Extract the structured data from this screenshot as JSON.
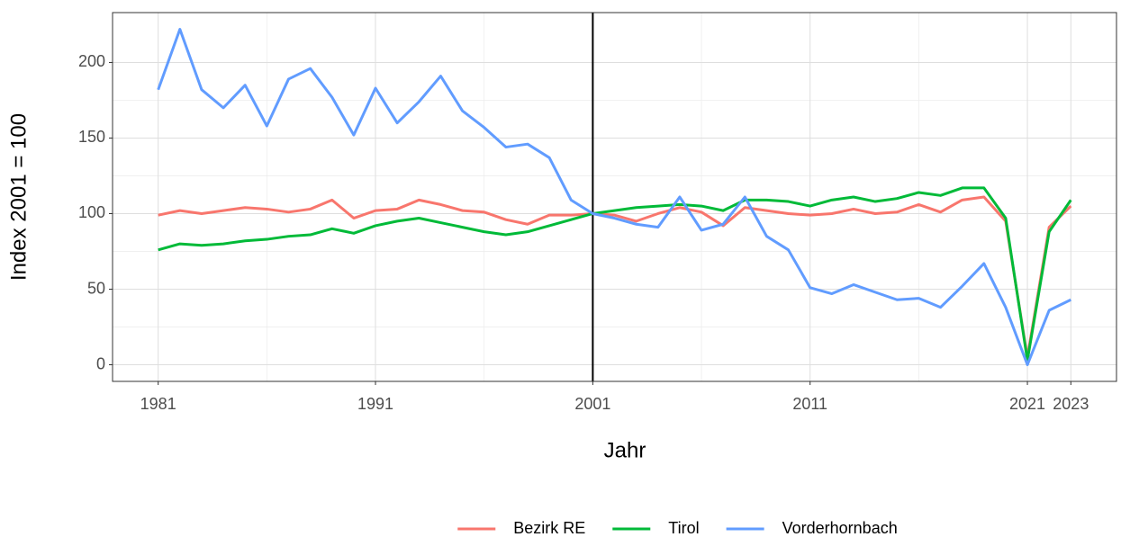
{
  "chart_data": {
    "type": "line",
    "x_label": "Jahr",
    "y_label": "Index 2001 = 100",
    "x": [
      1981,
      1982,
      1983,
      1984,
      1985,
      1986,
      1987,
      1988,
      1989,
      1990,
      1991,
      1992,
      1993,
      1994,
      1995,
      1996,
      1997,
      1998,
      1999,
      2000,
      2001,
      2002,
      2003,
      2004,
      2005,
      2006,
      2007,
      2008,
      2009,
      2010,
      2011,
      2012,
      2013,
      2014,
      2015,
      2016,
      2017,
      2018,
      2019,
      2020,
      2021,
      2022,
      2023
    ],
    "series": [
      {
        "name": "Bezirk RE",
        "color": "#F8766D",
        "values": [
          99,
          102,
          100,
          102,
          104,
          103,
          101,
          103,
          109,
          97,
          102,
          103,
          109,
          106,
          102,
          101,
          96,
          93,
          99,
          99,
          100,
          99,
          95,
          100,
          104,
          101,
          92,
          104,
          102,
          100,
          99,
          100,
          103,
          100,
          101,
          106,
          101,
          109,
          111,
          95,
          5,
          91,
          105
        ]
      },
      {
        "name": "Tirol",
        "color": "#00BA38",
        "values": [
          76,
          80,
          79,
          80,
          82,
          83,
          85,
          86,
          90,
          87,
          92,
          95,
          97,
          94,
          91,
          88,
          86,
          88,
          92,
          96,
          100,
          102,
          104,
          105,
          106,
          105,
          102,
          109,
          109,
          108,
          105,
          109,
          111,
          108,
          110,
          114,
          112,
          117,
          117,
          97,
          3,
          88,
          109
        ]
      },
      {
        "name": "Vorderhornbach",
        "color": "#619CFF",
        "values": [
          182,
          222,
          182,
          170,
          185,
          158,
          189,
          196,
          177,
          152,
          183,
          160,
          174,
          191,
          168,
          157,
          144,
          146,
          137,
          109,
          100,
          97,
          93,
          91,
          111,
          89,
          93,
          111,
          85,
          76,
          51,
          47,
          53,
          48,
          43,
          44,
          38,
          52,
          67,
          38,
          0,
          36,
          43
        ]
      }
    ],
    "xlim": [
      1978.9,
      2025.1
    ],
    "xticks": [
      1981,
      1991,
      2001,
      2011,
      2021,
      2023
    ],
    "ylim": [
      -11,
      233
    ],
    "yticks": [
      0,
      50,
      100,
      150,
      200
    ],
    "vline": 2001,
    "grid": true,
    "minor_grid": true,
    "legend": "bottom"
  }
}
